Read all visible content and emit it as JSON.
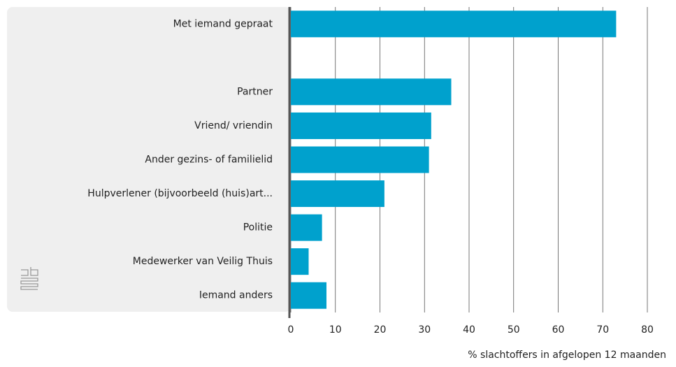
{
  "chart_data": {
    "type": "hbar",
    "categories": [
      "Met iemand gepraat",
      null,
      "Partner",
      "Vriend/ vriendin",
      "Ander gezins- of familielid",
      "Hulpverlener (bijvoorbeeld (huis)art...",
      "Politie",
      "Medewerker van Veilig Thuis",
      "Iemand anders"
    ],
    "values": [
      73,
      null,
      36,
      31.5,
      31,
      21,
      7,
      4,
      8
    ],
    "color": "#00a1cd",
    "xlabel": "% slachtoffers in afgelopen 12 maanden",
    "xlim": [
      0,
      80
    ],
    "xticks": [
      0,
      10,
      20,
      30,
      40,
      50,
      60,
      70,
      80
    ],
    "grid": true
  }
}
